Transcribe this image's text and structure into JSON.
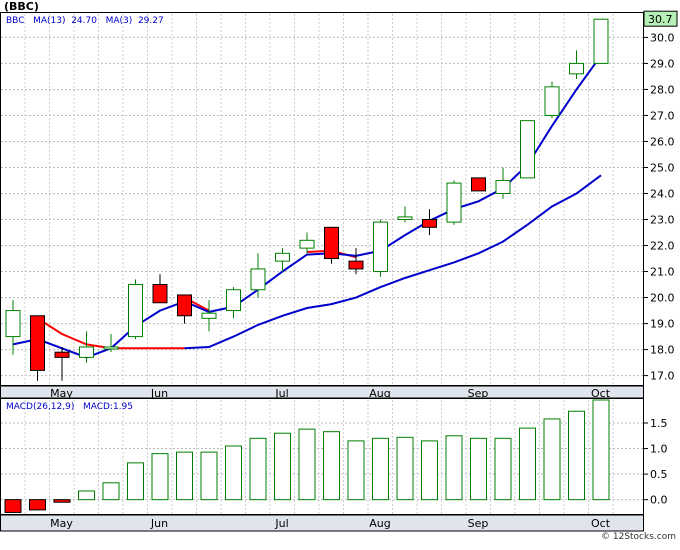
{
  "credit": "© 12Stocks.com",
  "chart_data": [
    {
      "type": "candlestick",
      "title": "(BBC)",
      "legend": {
        "symbol": "BBC",
        "ma13": "MA(13)  24.70",
        "ma3": "MA(3)  29.27"
      },
      "last_price_label": "30.7",
      "ylim": [
        16.6,
        30.9
      ],
      "yticks": [
        17.0,
        18.0,
        19.0,
        20.0,
        21.0,
        22.0,
        23.0,
        24.0,
        25.0,
        26.0,
        27.0,
        28.0,
        29.0,
        30.0
      ],
      "ytick_labels": [
        "17.0",
        "18.0",
        "19.0",
        "20.0",
        "21.0",
        "22.0",
        "23.0",
        "24.0",
        "25.0",
        "26.0",
        "27.0",
        "28.0",
        "29.0",
        "30.0"
      ],
      "month_labels": [
        "May",
        "Jun",
        "Jul",
        "Aug",
        "Sep",
        "Oct"
      ],
      "month_index": [
        1,
        5,
        10,
        14,
        18,
        23
      ],
      "grid": true,
      "colors": {
        "up": "#008000",
        "down_fill": "#ff0000",
        "ma_short": "#0000cc",
        "ma_long": "#0000cc",
        "ma_early": "#ff0000",
        "label_bg": "#b6f0b6"
      },
      "candles": [
        {
          "o": 18.5,
          "h": 19.9,
          "l": 17.8,
          "c": 19.5
        },
        {
          "o": 19.3,
          "h": 19.3,
          "l": 16.8,
          "c": 17.2
        },
        {
          "o": 17.9,
          "h": 18.1,
          "l": 16.8,
          "c": 17.7
        },
        {
          "o": 17.7,
          "h": 18.7,
          "l": 17.5,
          "c": 18.1
        },
        {
          "o": 18.1,
          "h": 18.6,
          "l": 17.9,
          "c": 18.1
        },
        {
          "o": 18.5,
          "h": 20.7,
          "l": 18.4,
          "c": 20.5
        },
        {
          "o": 20.5,
          "h": 20.9,
          "l": 19.8,
          "c": 19.8
        },
        {
          "o": 20.1,
          "h": 20.1,
          "l": 19.0,
          "c": 19.3
        },
        {
          "o": 19.2,
          "h": 19.9,
          "l": 18.7,
          "c": 19.4
        },
        {
          "o": 19.5,
          "h": 20.4,
          "l": 19.2,
          "c": 20.3
        },
        {
          "o": 20.3,
          "h": 21.7,
          "l": 20.0,
          "c": 21.1
        },
        {
          "o": 21.4,
          "h": 21.9,
          "l": 21.0,
          "c": 21.7
        },
        {
          "o": 21.9,
          "h": 22.5,
          "l": 21.7,
          "c": 22.2
        },
        {
          "o": 22.7,
          "h": 22.7,
          "l": 21.3,
          "c": 21.5
        },
        {
          "o": 21.4,
          "h": 21.9,
          "l": 20.9,
          "c": 21.1
        },
        {
          "o": 21.0,
          "h": 23.0,
          "l": 20.8,
          "c": 22.9
        },
        {
          "o": 23.0,
          "h": 23.5,
          "l": 22.9,
          "c": 23.1
        },
        {
          "o": 23.0,
          "h": 23.4,
          "l": 22.4,
          "c": 22.7
        },
        {
          "o": 22.9,
          "h": 24.5,
          "l": 22.8,
          "c": 24.4
        },
        {
          "o": 24.6,
          "h": 24.6,
          "l": 24.1,
          "c": 24.1
        },
        {
          "o": 24.0,
          "h": 25.0,
          "l": 23.8,
          "c": 24.5
        },
        {
          "o": 24.6,
          "h": 26.8,
          "l": 24.6,
          "c": 26.8
        },
        {
          "o": 27.0,
          "h": 28.3,
          "l": 26.9,
          "c": 28.1
        },
        {
          "o": 28.6,
          "h": 29.5,
          "l": 28.4,
          "c": 29.0
        },
        {
          "o": 29.0,
          "h": 30.7,
          "l": 29.0,
          "c": 30.7
        }
      ],
      "ma3_early": [
        19.2,
        18.5,
        18.1,
        18.05,
        18.05,
        null,
        18.05,
        19.5
      ],
      "ma3_early_index": [
        1,
        2,
        3,
        4,
        5,
        6,
        7,
        8
      ],
      "ma3": [
        [
          0,
          18.2
        ],
        [
          1,
          18.4
        ],
        [
          3,
          17.7
        ],
        [
          4,
          18.05
        ],
        [
          5,
          18.9
        ],
        [
          6,
          19.5
        ],
        [
          7,
          19.85
        ],
        [
          8,
          19.45
        ],
        [
          9,
          19.65
        ],
        [
          10,
          20.3
        ],
        [
          11,
          21.0
        ],
        [
          12,
          21.65
        ],
        [
          13,
          21.7
        ],
        [
          14,
          21.6
        ],
        [
          15,
          21.8
        ],
        [
          16,
          22.4
        ],
        [
          17,
          22.95
        ],
        [
          18,
          23.4
        ],
        [
          19,
          23.7
        ],
        [
          20,
          24.2
        ],
        [
          21,
          25.1
        ],
        [
          22,
          26.6
        ],
        [
          23,
          28.0
        ],
        [
          24,
          29.3
        ]
      ],
      "ma_red": [
        [
          1,
          19.2
        ],
        [
          2,
          18.6
        ],
        [
          3,
          18.2
        ],
        [
          4,
          18.05
        ],
        [
          6,
          18.05
        ],
        [
          7,
          18.05
        ]
      ],
      "ma_red2": [
        [
          7,
          20.0
        ],
        [
          8,
          19.5
        ]
      ],
      "ma_red3": [
        [
          12,
          21.75
        ],
        [
          13,
          21.8
        ],
        [
          14,
          21.55
        ]
      ],
      "ma13": [
        [
          7,
          18.05
        ],
        [
          8,
          18.1
        ],
        [
          9,
          18.5
        ],
        [
          10,
          18.95
        ],
        [
          11,
          19.3
        ],
        [
          12,
          19.6
        ],
        [
          13,
          19.75
        ],
        [
          14,
          20.0
        ],
        [
          15,
          20.4
        ],
        [
          16,
          20.75
        ],
        [
          17,
          21.05
        ],
        [
          18,
          21.35
        ],
        [
          19,
          21.7
        ],
        [
          20,
          22.15
        ],
        [
          21,
          22.8
        ],
        [
          22,
          23.5
        ],
        [
          23,
          24.0
        ],
        [
          24,
          24.7
        ]
      ]
    },
    {
      "type": "bar",
      "title": "",
      "legend": {
        "params": "MACD(26,12,9)",
        "value": "MACD:1.95"
      },
      "ylim": [
        -0.3,
        1.95
      ],
      "yticks": [
        0.0,
        0.5,
        1.0,
        1.5
      ],
      "ytick_labels": [
        "0.0",
        "0.5",
        "1.0",
        "1.5"
      ],
      "month_labels": [
        "May",
        "Jun",
        "Jul",
        "Aug",
        "Sep",
        "Oct"
      ],
      "values": [
        -0.25,
        -0.2,
        -0.05,
        0.17,
        0.33,
        0.72,
        0.9,
        0.93,
        0.93,
        1.05,
        1.2,
        1.3,
        1.38,
        1.33,
        1.15,
        1.2,
        1.22,
        1.15,
        1.25,
        1.2,
        1.2,
        1.4,
        1.58,
        1.73,
        1.95
      ],
      "colors": {
        "pos": "#008000",
        "neg_fill": "#ff0000"
      }
    }
  ]
}
